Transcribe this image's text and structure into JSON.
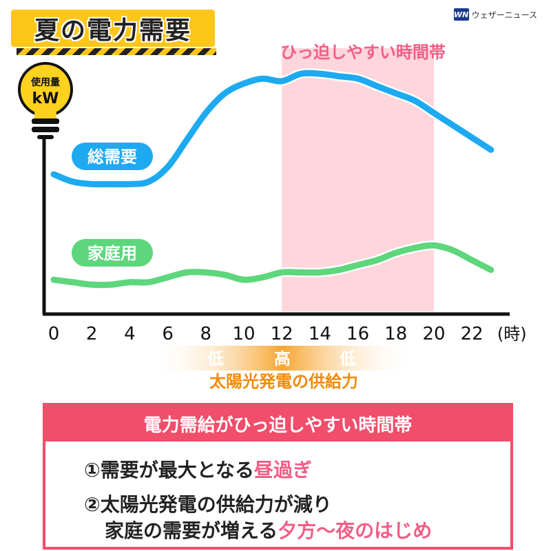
{
  "title": "夏の電力需要",
  "brand": {
    "logo": "WN",
    "name": "ウェザーニュース"
  },
  "bulb": {
    "line1": "使用量",
    "line2": "kW"
  },
  "tight_period_label": "ひっ迫しやすい時間帯",
  "solar": {
    "low1": "低",
    "high": "高",
    "low2": "低",
    "label": "太陽光発電の供給力"
  },
  "panel": {
    "heading": "電力需給がひっ迫しやすい時間帯",
    "item1_prefix": "①需要が最大となる",
    "item1_highlight": "昼過ぎ",
    "item2_line1": "②太陽光発電の供給力が減り",
    "item2_line2_prefix": "家庭の需要が増える",
    "item2_line2_highlight": "夕方〜夜のはじめ"
  },
  "colors": {
    "total": "#1eaaf0",
    "household": "#5dd67c",
    "band": "#ffd6dc",
    "band_label": "#f25e86",
    "solar_text": "#f08a0a",
    "panel": "#f04e6b"
  },
  "chart_data": {
    "type": "line",
    "x_unit": "(時)",
    "x_ticks": [
      0,
      2,
      4,
      6,
      8,
      10,
      12,
      14,
      16,
      18,
      20,
      22
    ],
    "xlim": [
      0,
      23
    ],
    "ylim": [
      0,
      100
    ],
    "highlight_range": [
      12,
      20
    ],
    "series": [
      {
        "name": "総需要",
        "x": [
          0,
          1,
          2,
          3,
          4,
          5,
          6,
          7,
          8,
          9,
          10,
          11,
          12,
          13,
          14,
          15,
          16,
          17,
          18,
          19,
          20,
          21,
          22,
          23
        ],
        "values": [
          57,
          54,
          53,
          53,
          53,
          54,
          60,
          71,
          82,
          90,
          94,
          96,
          95,
          98,
          98,
          97,
          96,
          93,
          90,
          87,
          82,
          77,
          72,
          67
        ]
      },
      {
        "name": "家庭用",
        "x": [
          0,
          1,
          2,
          3,
          4,
          5,
          6,
          7,
          8,
          9,
          10,
          11,
          12,
          13,
          14,
          15,
          16,
          17,
          18,
          19,
          20,
          21,
          22,
          23
        ],
        "values": [
          14,
          13,
          12,
          12,
          13,
          13,
          15,
          17,
          17,
          16,
          14,
          15,
          17,
          17,
          17,
          18,
          20,
          22,
          25,
          27,
          28,
          26,
          22,
          18
        ]
      }
    ]
  }
}
